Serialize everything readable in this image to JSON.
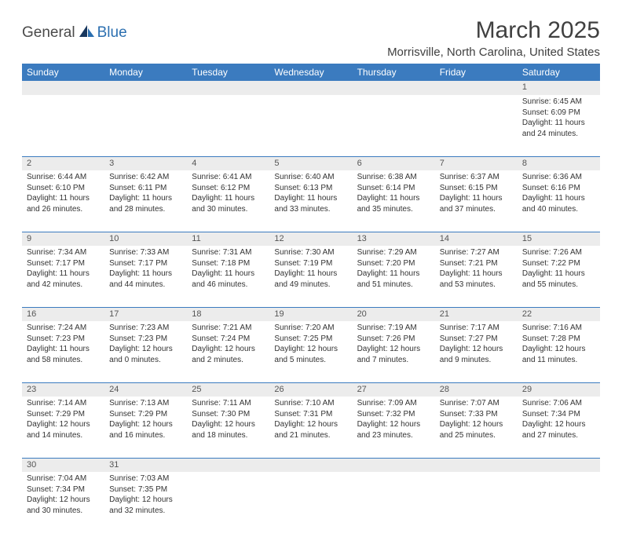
{
  "brand": {
    "part1": "General",
    "part2": "Blue",
    "color1": "#4a4a4a",
    "color2": "#2b6fb0"
  },
  "title": "March 2025",
  "location": "Morrisville, North Carolina, United States",
  "header_bg": "#3b7bbf",
  "header_fg": "#ffffff",
  "daynum_bg": "#ececec",
  "border_color": "#3b7bbf",
  "text_color": "#333333",
  "font_family": "Arial, Helvetica, sans-serif",
  "day_headers": [
    "Sunday",
    "Monday",
    "Tuesday",
    "Wednesday",
    "Thursday",
    "Friday",
    "Saturday"
  ],
  "weeks": [
    [
      null,
      null,
      null,
      null,
      null,
      null,
      {
        "n": "1",
        "sr": "6:45 AM",
        "ss": "6:09 PM",
        "dl": "11 hours and 24 minutes."
      }
    ],
    [
      {
        "n": "2",
        "sr": "6:44 AM",
        "ss": "6:10 PM",
        "dl": "11 hours and 26 minutes."
      },
      {
        "n": "3",
        "sr": "6:42 AM",
        "ss": "6:11 PM",
        "dl": "11 hours and 28 minutes."
      },
      {
        "n": "4",
        "sr": "6:41 AM",
        "ss": "6:12 PM",
        "dl": "11 hours and 30 minutes."
      },
      {
        "n": "5",
        "sr": "6:40 AM",
        "ss": "6:13 PM",
        "dl": "11 hours and 33 minutes."
      },
      {
        "n": "6",
        "sr": "6:38 AM",
        "ss": "6:14 PM",
        "dl": "11 hours and 35 minutes."
      },
      {
        "n": "7",
        "sr": "6:37 AM",
        "ss": "6:15 PM",
        "dl": "11 hours and 37 minutes."
      },
      {
        "n": "8",
        "sr": "6:36 AM",
        "ss": "6:16 PM",
        "dl": "11 hours and 40 minutes."
      }
    ],
    [
      {
        "n": "9",
        "sr": "7:34 AM",
        "ss": "7:17 PM",
        "dl": "11 hours and 42 minutes."
      },
      {
        "n": "10",
        "sr": "7:33 AM",
        "ss": "7:17 PM",
        "dl": "11 hours and 44 minutes."
      },
      {
        "n": "11",
        "sr": "7:31 AM",
        "ss": "7:18 PM",
        "dl": "11 hours and 46 minutes."
      },
      {
        "n": "12",
        "sr": "7:30 AM",
        "ss": "7:19 PM",
        "dl": "11 hours and 49 minutes."
      },
      {
        "n": "13",
        "sr": "7:29 AM",
        "ss": "7:20 PM",
        "dl": "11 hours and 51 minutes."
      },
      {
        "n": "14",
        "sr": "7:27 AM",
        "ss": "7:21 PM",
        "dl": "11 hours and 53 minutes."
      },
      {
        "n": "15",
        "sr": "7:26 AM",
        "ss": "7:22 PM",
        "dl": "11 hours and 55 minutes."
      }
    ],
    [
      {
        "n": "16",
        "sr": "7:24 AM",
        "ss": "7:23 PM",
        "dl": "11 hours and 58 minutes."
      },
      {
        "n": "17",
        "sr": "7:23 AM",
        "ss": "7:23 PM",
        "dl": "12 hours and 0 minutes."
      },
      {
        "n": "18",
        "sr": "7:21 AM",
        "ss": "7:24 PM",
        "dl": "12 hours and 2 minutes."
      },
      {
        "n": "19",
        "sr": "7:20 AM",
        "ss": "7:25 PM",
        "dl": "12 hours and 5 minutes."
      },
      {
        "n": "20",
        "sr": "7:19 AM",
        "ss": "7:26 PM",
        "dl": "12 hours and 7 minutes."
      },
      {
        "n": "21",
        "sr": "7:17 AM",
        "ss": "7:27 PM",
        "dl": "12 hours and 9 minutes."
      },
      {
        "n": "22",
        "sr": "7:16 AM",
        "ss": "7:28 PM",
        "dl": "12 hours and 11 minutes."
      }
    ],
    [
      {
        "n": "23",
        "sr": "7:14 AM",
        "ss": "7:29 PM",
        "dl": "12 hours and 14 minutes."
      },
      {
        "n": "24",
        "sr": "7:13 AM",
        "ss": "7:29 PM",
        "dl": "12 hours and 16 minutes."
      },
      {
        "n": "25",
        "sr": "7:11 AM",
        "ss": "7:30 PM",
        "dl": "12 hours and 18 minutes."
      },
      {
        "n": "26",
        "sr": "7:10 AM",
        "ss": "7:31 PM",
        "dl": "12 hours and 21 minutes."
      },
      {
        "n": "27",
        "sr": "7:09 AM",
        "ss": "7:32 PM",
        "dl": "12 hours and 23 minutes."
      },
      {
        "n": "28",
        "sr": "7:07 AM",
        "ss": "7:33 PM",
        "dl": "12 hours and 25 minutes."
      },
      {
        "n": "29",
        "sr": "7:06 AM",
        "ss": "7:34 PM",
        "dl": "12 hours and 27 minutes."
      }
    ],
    [
      {
        "n": "30",
        "sr": "7:04 AM",
        "ss": "7:34 PM",
        "dl": "12 hours and 30 minutes."
      },
      {
        "n": "31",
        "sr": "7:03 AM",
        "ss": "7:35 PM",
        "dl": "12 hours and 32 minutes."
      },
      null,
      null,
      null,
      null,
      null
    ]
  ],
  "labels": {
    "sunrise": "Sunrise:",
    "sunset": "Sunset:",
    "daylight": "Daylight:"
  }
}
